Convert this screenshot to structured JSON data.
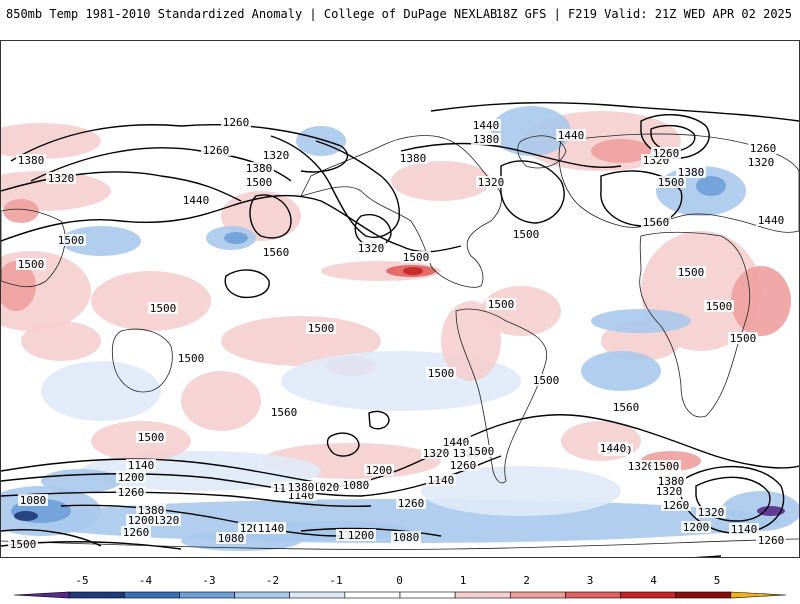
{
  "header": {
    "left": "850mb Temp 1981-2010 Standardized Anomaly | College of DuPage NEXLAB",
    "right": "18Z GFS | F219 Valid: 21Z WED APR 02 2025"
  },
  "map": {
    "projection": "global cylindrical",
    "contour_labels": [
      "1260",
      "1320",
      "1380",
      "1440",
      "1500",
      "1560",
      "1320",
      "1380",
      "1440",
      "1260",
      "1380",
      "1500",
      "1380",
      "1320",
      "1440",
      "1500",
      "1560",
      "1500",
      "1440",
      "1380",
      "1320",
      "1260",
      "1200",
      "1140",
      "1080",
      "1020"
    ],
    "labels": [
      {
        "t": "1260"
      },
      {
        "t": "1260"
      },
      {
        "t": "1320"
      },
      {
        "t": "1380"
      },
      {
        "t": "1380"
      },
      {
        "t": "1320"
      },
      {
        "t": "1500"
      },
      {
        "t": "1440"
      },
      {
        "t": "1560"
      },
      {
        "t": "1320"
      },
      {
        "t": "1500"
      },
      {
        "t": "1500"
      },
      {
        "t": "1500"
      },
      {
        "t": "1500"
      },
      {
        "t": "1500"
      },
      {
        "t": "1380"
      },
      {
        "t": "1380"
      },
      {
        "t": "1440"
      },
      {
        "t": "1320"
      },
      {
        "t": "1440"
      },
      {
        "t": "1320"
      },
      {
        "t": "1260"
      },
      {
        "t": "1380"
      },
      {
        "t": "1320"
      },
      {
        "t": "1260"
      },
      {
        "t": "1500"
      },
      {
        "t": "1560"
      },
      {
        "t": "1440"
      },
      {
        "t": "1500"
      },
      {
        "t": "1500"
      },
      {
        "t": "1500"
      },
      {
        "t": "1500"
      },
      {
        "t": "1500"
      },
      {
        "t": "1500"
      },
      {
        "t": "1500"
      },
      {
        "t": "1500"
      },
      {
        "t": "1560"
      },
      {
        "t": "1500"
      },
      {
        "t": "1440"
      },
      {
        "t": "1380"
      },
      {
        "t": "1320"
      },
      {
        "t": "1260"
      },
      {
        "t": "1200"
      },
      {
        "t": "1140"
      },
      {
        "t": "1080"
      },
      {
        "t": "1020"
      },
      {
        "t": "1140"
      },
      {
        "t": "1140"
      },
      {
        "t": "1200"
      },
      {
        "t": "1260"
      },
      {
        "t": "1380"
      },
      {
        "t": "1320"
      },
      {
        "t": "1260"
      },
      {
        "t": "1200"
      },
      {
        "t": "1140"
      },
      {
        "t": "1080"
      },
      {
        "t": "1500"
      },
      {
        "t": "1440"
      },
      {
        "t": "1320"
      },
      {
        "t": "1500"
      },
      {
        "t": "1560"
      },
      {
        "t": "1440"
      },
      {
        "t": "1500"
      },
      {
        "t": "1380"
      },
      {
        "t": "1320"
      },
      {
        "t": "1260"
      },
      {
        "t": "1200"
      },
      {
        "t": "1140"
      },
      {
        "t": "1260"
      },
      {
        "t": "1320"
      },
      {
        "t": "1080"
      },
      {
        "t": "1200"
      },
      {
        "t": "1140"
      },
      {
        "t": "1380"
      },
      {
        "t": "1260"
      },
      {
        "t": "1200"
      },
      {
        "t": "1140"
      },
      {
        "t": "1080"
      },
      {
        "t": "1140"
      },
      {
        "t": "1200"
      },
      {
        "t": "1260"
      },
      {
        "t": "1260"
      },
      {
        "t": "1080"
      },
      {
        "t": "1140"
      },
      {
        "t": "1200"
      },
      {
        "t": "1500"
      }
    ]
  },
  "legend": {
    "ticks": [
      "-5",
      "-4",
      "-3",
      "-2",
      "-1",
      "0",
      "1",
      "2",
      "3",
      "4",
      "5"
    ],
    "colors": [
      "#5a2a8a",
      "#1f3a78",
      "#3b6fb6",
      "#6fa0d8",
      "#a9c9ec",
      "#dfeaf7",
      "#ffffff",
      "#ffffff",
      "#f6cfcf",
      "#eea0a0",
      "#e06262",
      "#c42424",
      "#8a0e0e",
      "#f0b020"
    ]
  }
}
